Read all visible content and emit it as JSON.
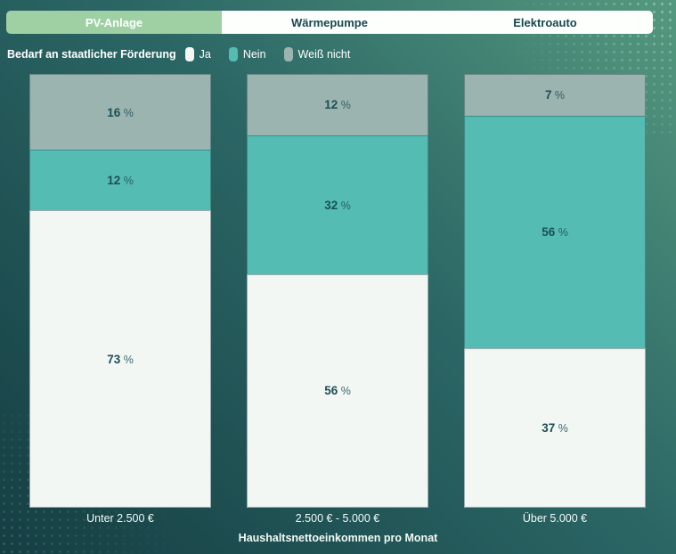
{
  "tabs": [
    {
      "label": "PV-Anlage",
      "active": true
    },
    {
      "label": "Wärmepumpe",
      "active": false
    },
    {
      "label": "Elektroauto",
      "active": false
    }
  ],
  "legend": {
    "title": "Bedarf an staatlicher Förderung",
    "items": [
      {
        "label": "Ja",
        "color": "#f3f7f4"
      },
      {
        "label": "Nein",
        "color": "#55bcb4"
      },
      {
        "label": "Weiß nicht",
        "color": "#9cb4b0"
      }
    ]
  },
  "chart_data": {
    "type": "bar",
    "stacked": true,
    "percent_stacked": true,
    "categories": [
      "Unter 2.500 €",
      "2.500 € - 5.000 €",
      "Über 5.000 €"
    ],
    "series": [
      {
        "name": "Weiß nicht",
        "color": "#9cb4b0",
        "values": [
          16,
          12,
          7
        ]
      },
      {
        "name": "Nein",
        "color": "#55bcb4",
        "values": [
          12,
          32,
          56
        ]
      },
      {
        "name": "Ja",
        "color": "#f3f7f4",
        "values": [
          73,
          56,
          37
        ]
      }
    ],
    "value_suffix": " %",
    "xlabel": "Haushaltsnettoeinkommen pro Monat",
    "ylabel": "",
    "ylim": [
      0,
      100
    ],
    "legend_position": "top",
    "grid": false
  },
  "theme": {
    "tab_active_bg": "#9ed0a4",
    "tab_active_text": "#ffffff",
    "tab_bg": "#fdfffd",
    "tab_text": "#17474f",
    "bg_top_right": "#55997f",
    "bg_mid": "#2b6665",
    "bg_bottom_left": "#153e43",
    "value_label": "#1b4f55",
    "axis_text": "#f2faf7"
  }
}
